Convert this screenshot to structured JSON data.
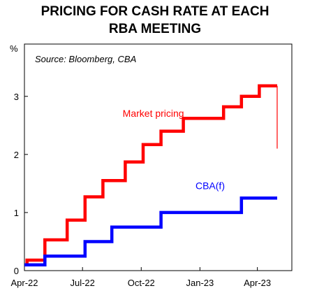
{
  "title_line1": "PRICING FOR CASH RATE AT EACH",
  "title_line2": "RBA MEETING",
  "source": "Source: Bloomberg, CBA",
  "colors": {
    "market": "#ff0000",
    "cba": "#0000ff",
    "axis": "#000000",
    "label_market": "#ff0000",
    "label_cba": "#0000ff"
  },
  "chart_data": {
    "type": "line",
    "title": "PRICING FOR CASH RATE AT EACH RBA MEETING",
    "ylabel": "%",
    "xlabel": "",
    "x_ticks": [
      "Apr-22",
      "Jul-22",
      "Oct-22",
      "Jan-23",
      "Apr-23"
    ],
    "x_tick_dates": [
      "2022-04-01",
      "2022-07-01",
      "2022-10-01",
      "2023-01-01",
      "2023-04-01"
    ],
    "xlim": [
      "2022-04-01",
      "2023-05-25"
    ],
    "y_ticks": [
      "0",
      "1",
      "2",
      "3"
    ],
    "ylim": [
      0,
      3.9
    ],
    "grid": false,
    "legend": "inline labels",
    "series": [
      {
        "name": "Market pricing",
        "steps": [
          {
            "date": "2022-04-01",
            "value": 0.1
          },
          {
            "date": "2022-04-05",
            "value": 0.18
          },
          {
            "date": "2022-05-03",
            "value": 0.53
          },
          {
            "date": "2022-06-07",
            "value": 0.87
          },
          {
            "date": "2022-07-05",
            "value": 1.27
          },
          {
            "date": "2022-08-02",
            "value": 1.55
          },
          {
            "date": "2022-09-06",
            "value": 1.87
          },
          {
            "date": "2022-10-04",
            "value": 2.17
          },
          {
            "date": "2022-11-01",
            "value": 2.4
          },
          {
            "date": "2022-12-06",
            "value": 2.62
          },
          {
            "date": "2023-02-07",
            "value": 2.82
          },
          {
            "date": "2023-03-07",
            "value": 3.0
          },
          {
            "date": "2023-04-04",
            "value": 3.18
          }
        ],
        "end_date": "2023-05-02",
        "end_value": 2.1
      },
      {
        "name": "CBA(f)",
        "steps": [
          {
            "date": "2022-04-01",
            "value": 0.1
          },
          {
            "date": "2022-05-03",
            "value": 0.25
          },
          {
            "date": "2022-07-05",
            "value": 0.5
          },
          {
            "date": "2022-08-16",
            "value": 0.75
          },
          {
            "date": "2022-11-01",
            "value": 1.0
          },
          {
            "date": "2023-03-07",
            "value": 1.25
          }
        ],
        "end_date": "2023-05-02",
        "end_value": 1.25
      }
    ],
    "annotations": [
      {
        "text": "Market pricing",
        "date": "2022-10-20",
        "value": 2.65
      },
      {
        "text": "CBA(f)",
        "date": "2023-01-17",
        "value": 1.4
      }
    ]
  }
}
